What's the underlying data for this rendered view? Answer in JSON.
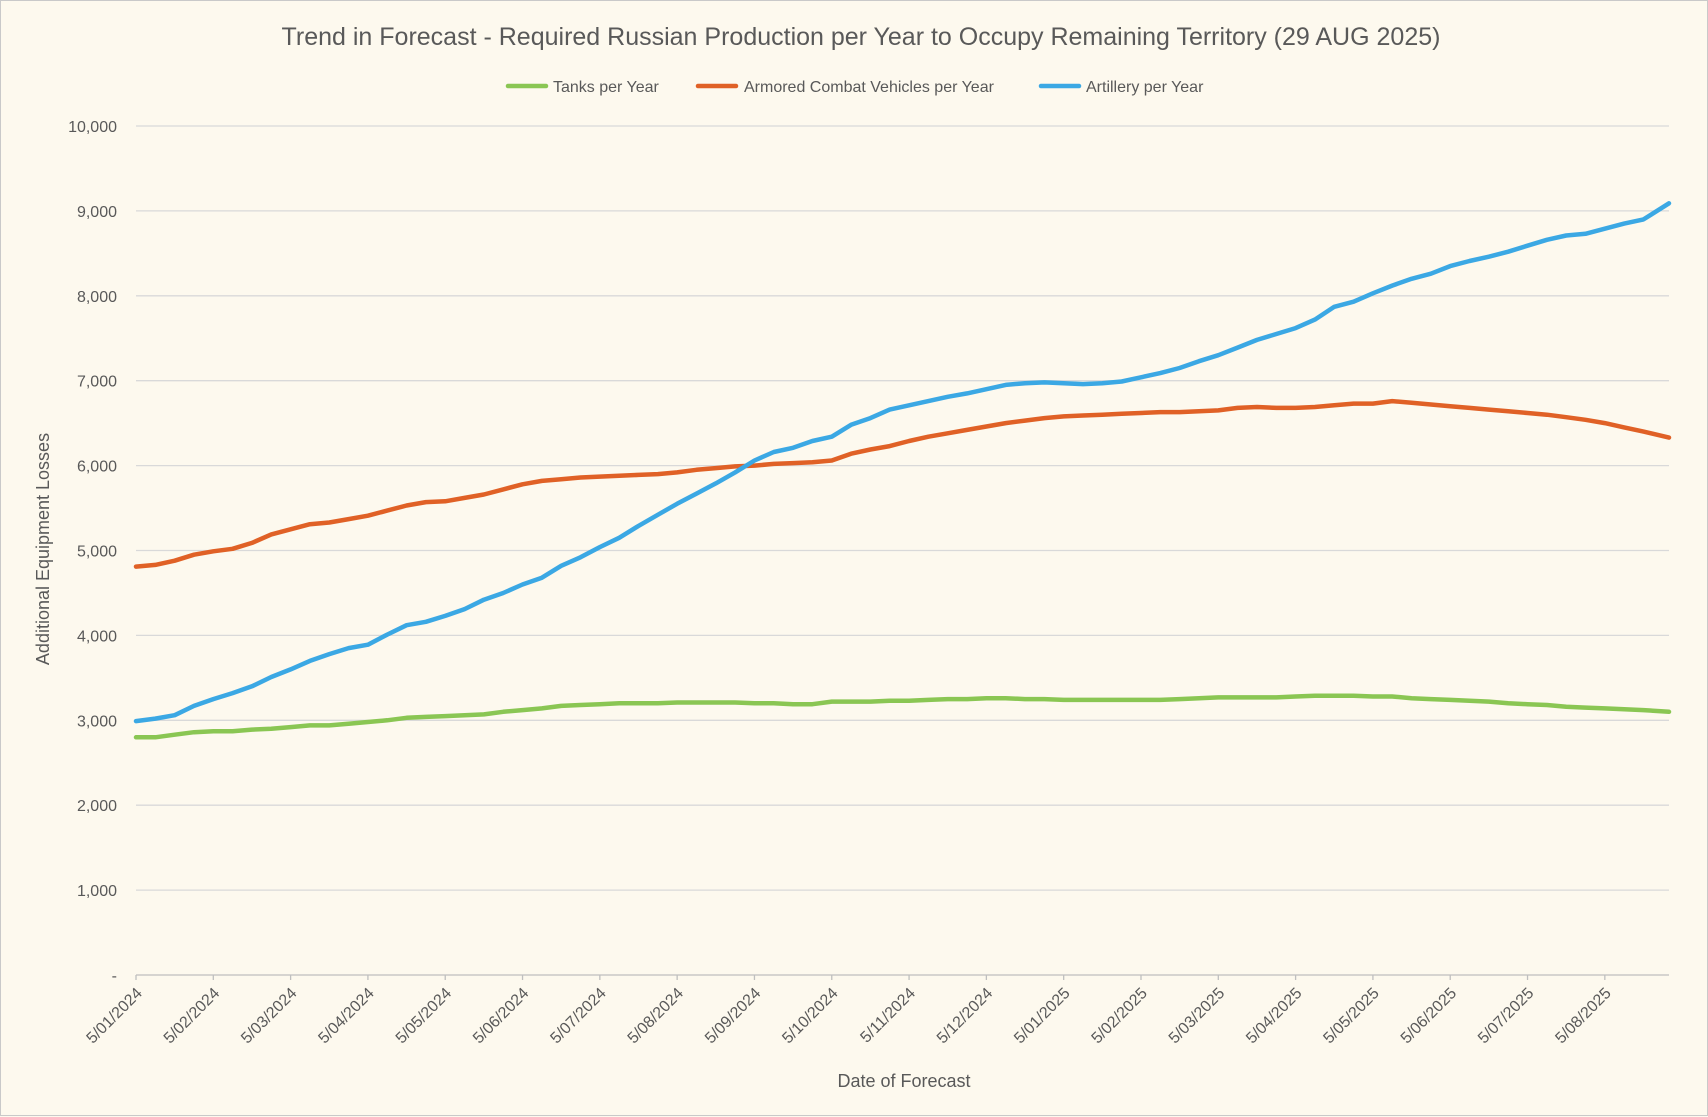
{
  "chart_data": {
    "type": "line",
    "title": "Trend in Forecast - Required Russian Production per Year to Occupy Remaining Territory (29 AUG 2025)",
    "xlabel": "Date of Forecast",
    "ylabel": "Additional Equipment Losses",
    "ylim": [
      0,
      10000
    ],
    "y_ticks": [
      0,
      1000,
      2000,
      3000,
      4000,
      5000,
      6000,
      7000,
      8000,
      9000,
      10000
    ],
    "y_tick_labels": [
      "-",
      "1,000",
      "2,000",
      "3,000",
      "4,000",
      "5,000",
      "6,000",
      "7,000",
      "8,000",
      "9,000",
      "10,000"
    ],
    "x_tick_labels": [
      "5/01/2024",
      "5/02/2024",
      "5/03/2024",
      "5/04/2024",
      "5/05/2024",
      "5/06/2024",
      "5/07/2024",
      "5/08/2024",
      "5/09/2024",
      "5/10/2024",
      "5/11/2024",
      "5/12/2024",
      "5/01/2025",
      "5/02/2025",
      "5/03/2025",
      "5/04/2025",
      "5/05/2025",
      "5/06/2025",
      "5/07/2025",
      "5/08/2025"
    ],
    "x_range_months": [
      0,
      19.83
    ],
    "legend_position": "top",
    "grid": true,
    "series": [
      {
        "name": "Tanks per Year",
        "color": "#8ac653",
        "x": [
          0,
          0.25,
          0.5,
          0.75,
          1,
          1.25,
          1.5,
          1.75,
          2,
          2.25,
          2.5,
          2.75,
          3,
          3.25,
          3.5,
          3.75,
          4,
          4.25,
          4.5,
          4.75,
          5,
          5.25,
          5.5,
          5.75,
          6,
          6.25,
          6.5,
          6.75,
          7,
          7.25,
          7.5,
          7.75,
          8,
          8.25,
          8.5,
          8.75,
          9,
          9.25,
          9.5,
          9.75,
          10,
          10.25,
          10.5,
          10.75,
          11,
          11.25,
          11.5,
          11.75,
          12,
          12.25,
          12.5,
          12.75,
          13,
          13.25,
          13.5,
          13.75,
          14,
          14.25,
          14.5,
          14.75,
          15,
          15.25,
          15.5,
          15.75,
          16,
          16.25,
          16.5,
          16.75,
          17,
          17.25,
          17.5,
          17.75,
          18,
          18.25,
          18.5,
          18.75,
          19,
          19.25,
          19.5,
          19.83
        ],
        "values": [
          2800,
          2800,
          2830,
          2860,
          2870,
          2870,
          2890,
          2900,
          2920,
          2940,
          2940,
          2960,
          2980,
          3000,
          3030,
          3040,
          3050,
          3060,
          3070,
          3100,
          3120,
          3140,
          3170,
          3180,
          3190,
          3200,
          3200,
          3200,
          3210,
          3210,
          3210,
          3210,
          3200,
          3200,
          3190,
          3190,
          3220,
          3220,
          3220,
          3230,
          3230,
          3240,
          3250,
          3250,
          3260,
          3260,
          3250,
          3250,
          3240,
          3240,
          3240,
          3240,
          3240,
          3240,
          3250,
          3260,
          3270,
          3270,
          3270,
          3270,
          3280,
          3290,
          3290,
          3290,
          3280,
          3280,
          3260,
          3250,
          3240,
          3230,
          3220,
          3200,
          3190,
          3180,
          3160,
          3150,
          3140,
          3130,
          3120,
          3100
        ]
      },
      {
        "name": "Armored Combat Vehicles per Year",
        "color": "#e06126",
        "x": [
          0,
          0.25,
          0.5,
          0.75,
          1,
          1.25,
          1.5,
          1.75,
          2,
          2.25,
          2.5,
          2.75,
          3,
          3.25,
          3.5,
          3.75,
          4,
          4.25,
          4.5,
          4.75,
          5,
          5.25,
          5.5,
          5.75,
          6,
          6.25,
          6.5,
          6.75,
          7,
          7.25,
          7.5,
          7.75,
          8,
          8.25,
          8.5,
          8.75,
          9,
          9.25,
          9.5,
          9.75,
          10,
          10.25,
          10.5,
          10.75,
          11,
          11.25,
          11.5,
          11.75,
          12,
          12.25,
          12.5,
          12.75,
          13,
          13.25,
          13.5,
          13.75,
          14,
          14.25,
          14.5,
          14.75,
          15,
          15.25,
          15.5,
          15.75,
          16,
          16.25,
          16.5,
          16.75,
          17,
          17.25,
          17.5,
          17.75,
          18,
          18.25,
          18.5,
          18.75,
          19,
          19.25,
          19.5,
          19.83
        ],
        "values": [
          4810,
          4830,
          4880,
          4950,
          4990,
          5020,
          5090,
          5190,
          5250,
          5310,
          5330,
          5370,
          5410,
          5470,
          5530,
          5570,
          5580,
          5620,
          5660,
          5720,
          5780,
          5820,
          5840,
          5860,
          5870,
          5880,
          5890,
          5900,
          5920,
          5950,
          5970,
          5990,
          6000,
          6020,
          6030,
          6040,
          6060,
          6140,
          6190,
          6230,
          6290,
          6340,
          6380,
          6420,
          6460,
          6500,
          6530,
          6560,
          6580,
          6590,
          6600,
          6610,
          6620,
          6630,
          6630,
          6640,
          6650,
          6680,
          6690,
          6680,
          6680,
          6690,
          6710,
          6730,
          6730,
          6760,
          6740,
          6720,
          6700,
          6680,
          6660,
          6640,
          6620,
          6600,
          6570,
          6540,
          6500,
          6450,
          6400,
          6330
        ]
      },
      {
        "name": "Artillery per Year",
        "color": "#3ba8e4",
        "x": [
          0,
          0.25,
          0.5,
          0.75,
          1,
          1.25,
          1.5,
          1.75,
          2,
          2.25,
          2.5,
          2.75,
          3,
          3.25,
          3.5,
          3.75,
          4,
          4.25,
          4.5,
          4.75,
          5,
          5.25,
          5.5,
          5.75,
          6,
          6.25,
          6.5,
          6.75,
          7,
          7.25,
          7.5,
          7.75,
          8,
          8.25,
          8.5,
          8.75,
          9,
          9.25,
          9.5,
          9.75,
          10,
          10.25,
          10.5,
          10.75,
          11,
          11.25,
          11.5,
          11.75,
          12,
          12.25,
          12.5,
          12.75,
          13,
          13.25,
          13.5,
          13.75,
          14,
          14.25,
          14.5,
          14.75,
          15,
          15.25,
          15.5,
          15.75,
          16,
          16.25,
          16.5,
          16.75,
          17,
          17.25,
          17.5,
          17.75,
          18,
          18.25,
          18.5,
          18.75,
          19,
          19.25,
          19.5,
          19.83
        ],
        "values": [
          2990,
          3020,
          3060,
          3170,
          3250,
          3320,
          3400,
          3510,
          3600,
          3700,
          3780,
          3850,
          3890,
          4010,
          4120,
          4160,
          4230,
          4310,
          4420,
          4500,
          4600,
          4680,
          4820,
          4920,
          5040,
          5150,
          5290,
          5420,
          5550,
          5670,
          5790,
          5920,
          6060,
          6160,
          6210,
          6290,
          6340,
          6480,
          6560,
          6660,
          6710,
          6760,
          6810,
          6850,
          6900,
          6950,
          6970,
          6980,
          6970,
          6960,
          6970,
          6990,
          7040,
          7090,
          7150,
          7230,
          7300,
          7390,
          7480,
          7550,
          7620,
          7720,
          7870,
          7930,
          8030,
          8120,
          8200,
          8260,
          8350,
          8410,
          8460,
          8520,
          8590,
          8660,
          8710,
          8730,
          8790,
          8850,
          8900,
          9090
        ]
      }
    ]
  }
}
